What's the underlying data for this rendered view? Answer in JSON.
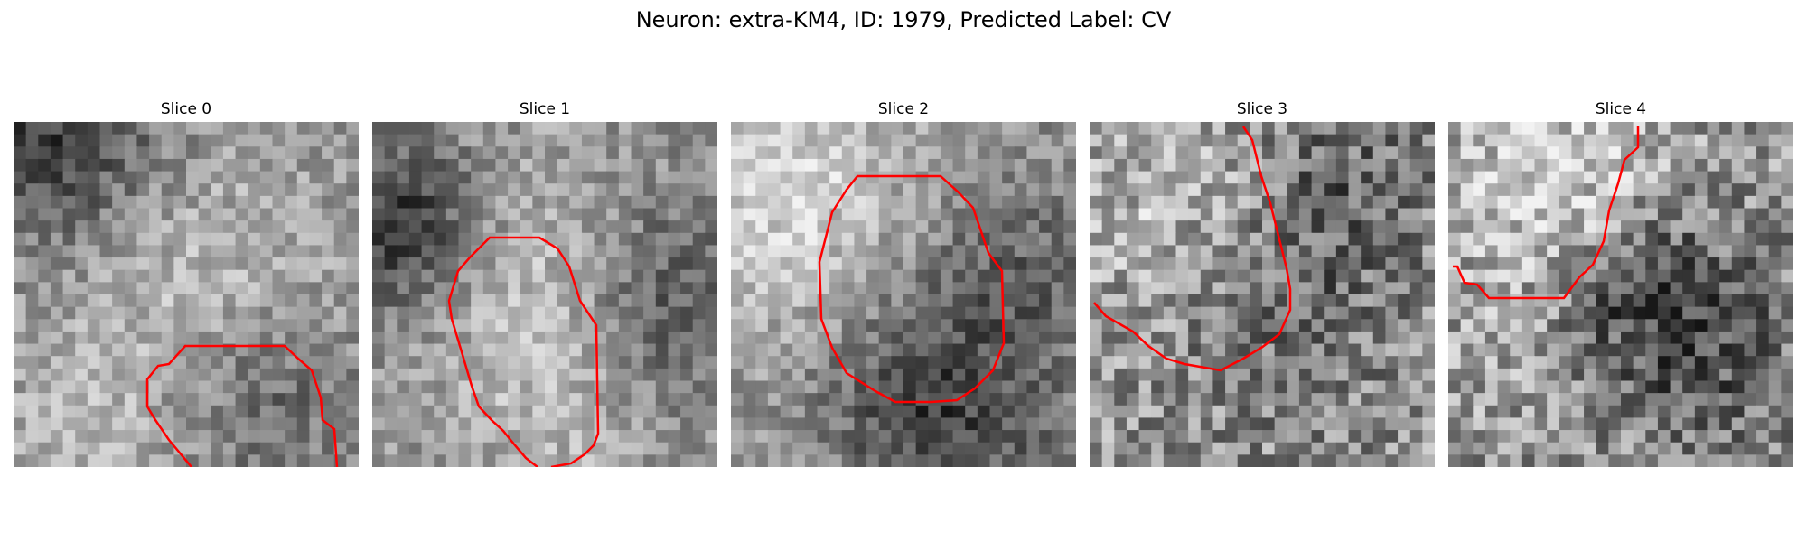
{
  "figure": {
    "title": "Neuron: extra-KM4, ID: 1979, Predicted Label: CV"
  },
  "panels": [
    {
      "title": "Slice 0"
    },
    {
      "title": "Slice 1"
    },
    {
      "title": "Slice 2"
    },
    {
      "title": "Slice 3"
    },
    {
      "title": "Slice 4"
    }
  ],
  "colors": {
    "contour": "#ff0000",
    "colormap": "gray"
  },
  "image": {
    "grid": "28x28 grayscale pixel patches"
  }
}
